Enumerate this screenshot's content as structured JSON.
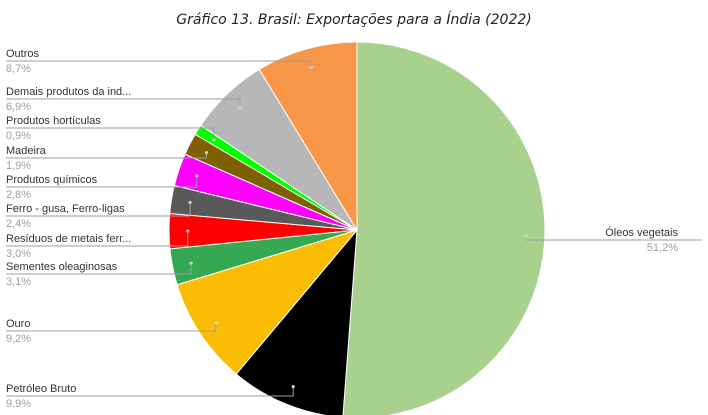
{
  "chart_data": {
    "type": "pie",
    "title": "Gráfico 13. Brasil: Exportações para a Índia (2022)",
    "slices": [
      {
        "name": "Óleos vegetais",
        "pct_label": "51,2%",
        "value": 51.2,
        "color": "#a9d18e"
      },
      {
        "name": "Petróleo Bruto",
        "pct_label": "9,9%",
        "value": 9.9,
        "color": "#000000"
      },
      {
        "name": "Ouro",
        "pct_label": "9,2%",
        "value": 9.2,
        "color": "#fbbc04"
      },
      {
        "name": "Sementes oleaginosas",
        "pct_label": "3,1%",
        "value": 3.1,
        "color": "#34a853"
      },
      {
        "name": "Resíduos de metais ferr...",
        "pct_label": "3,0%",
        "value": 3.0,
        "color": "#ff0000"
      },
      {
        "name": "Ferro - gusa, Ferro-ligas",
        "pct_label": "2,4%",
        "value": 2.4,
        "color": "#595959"
      },
      {
        "name": "Produtos químicos",
        "pct_label": "2,8%",
        "value": 2.8,
        "color": "#ff00ff"
      },
      {
        "name": "Madeira",
        "pct_label": "1,9%",
        "value": 1.9,
        "color": "#7f6000"
      },
      {
        "name": "Produtos hortículas",
        "pct_label": "0,9%",
        "value": 0.9,
        "color": "#00ff00"
      },
      {
        "name": "Demais produtos da ind...",
        "pct_label": "6,9%",
        "value": 6.9,
        "color": "#b7b7b7"
      },
      {
        "name": "Outros",
        "pct_label": "8,7%",
        "value": 8.7,
        "color": "#f79646"
      }
    ]
  }
}
